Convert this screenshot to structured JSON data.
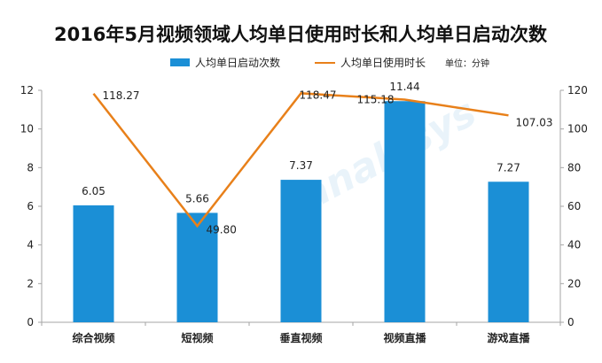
{
  "chart_data": {
    "type": "bar",
    "title": "2016年5月视频领域人均单日使用时长和人均单日启动次数",
    "unit_note": "单位：分钟",
    "categories": [
      "综合视频",
      "短视频",
      "垂直视频",
      "视频直播",
      "游戏直播"
    ],
    "series": [
      {
        "name": "人均单日启动次数",
        "type": "bar",
        "axis": "left",
        "color": "#1b8fd6",
        "values": [
          6.05,
          5.66,
          7.37,
          11.44,
          7.27
        ],
        "labels": [
          "6.05",
          "5.66",
          "7.37",
          "11.44",
          "7.27"
        ]
      },
      {
        "name": "人均单日使用时长",
        "type": "line",
        "axis": "right",
        "color": "#e8801a",
        "values": [
          118.27,
          49.8,
          118.47,
          115.18,
          107.03
        ],
        "labels": [
          "118.27",
          "49.80",
          "118.47",
          "115.18",
          "107.03"
        ]
      }
    ],
    "y_left": {
      "min": 0,
      "max": 12,
      "ticks": [
        "0",
        "2",
        "4",
        "6",
        "8",
        "10",
        "12"
      ]
    },
    "y_right": {
      "min": 0,
      "max": 120,
      "ticks": [
        "0",
        "20",
        "40",
        "60",
        "80",
        "100",
        "120"
      ]
    },
    "grid": false,
    "legend_position": "top"
  },
  "colors": {
    "axis": "#a6a6a6",
    "text": "#222222",
    "watermark": "#d8ebf7"
  }
}
